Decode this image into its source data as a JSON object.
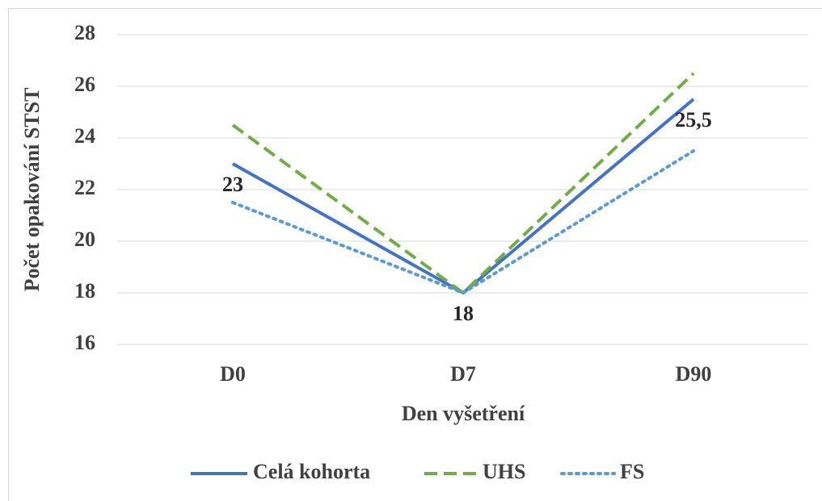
{
  "chart_data": {
    "type": "line",
    "x_label": "Den vyšetření",
    "y_label": "Počet opakování STST",
    "categories": [
      "D0",
      "D7",
      "D90"
    ],
    "series": [
      {
        "name": "Celá kohorta",
        "color": "#4472c4",
        "dash": "solid",
        "values": [
          23,
          18,
          25.5
        ],
        "value_labels": [
          "23",
          "18",
          "25,5"
        ]
      },
      {
        "name": "UHS",
        "color": "#70ad47",
        "dash": "dashed",
        "values": [
          24.5,
          18,
          26.5
        ]
      },
      {
        "name": "FS",
        "color": "#5b9bd5",
        "dash": "dotted",
        "values": [
          21.5,
          18,
          23.5
        ]
      }
    ],
    "ylim": [
      16,
      28
    ],
    "yticks": [
      16,
      18,
      20,
      22,
      24,
      26,
      28
    ],
    "grid": true,
    "legend": "bottom"
  }
}
